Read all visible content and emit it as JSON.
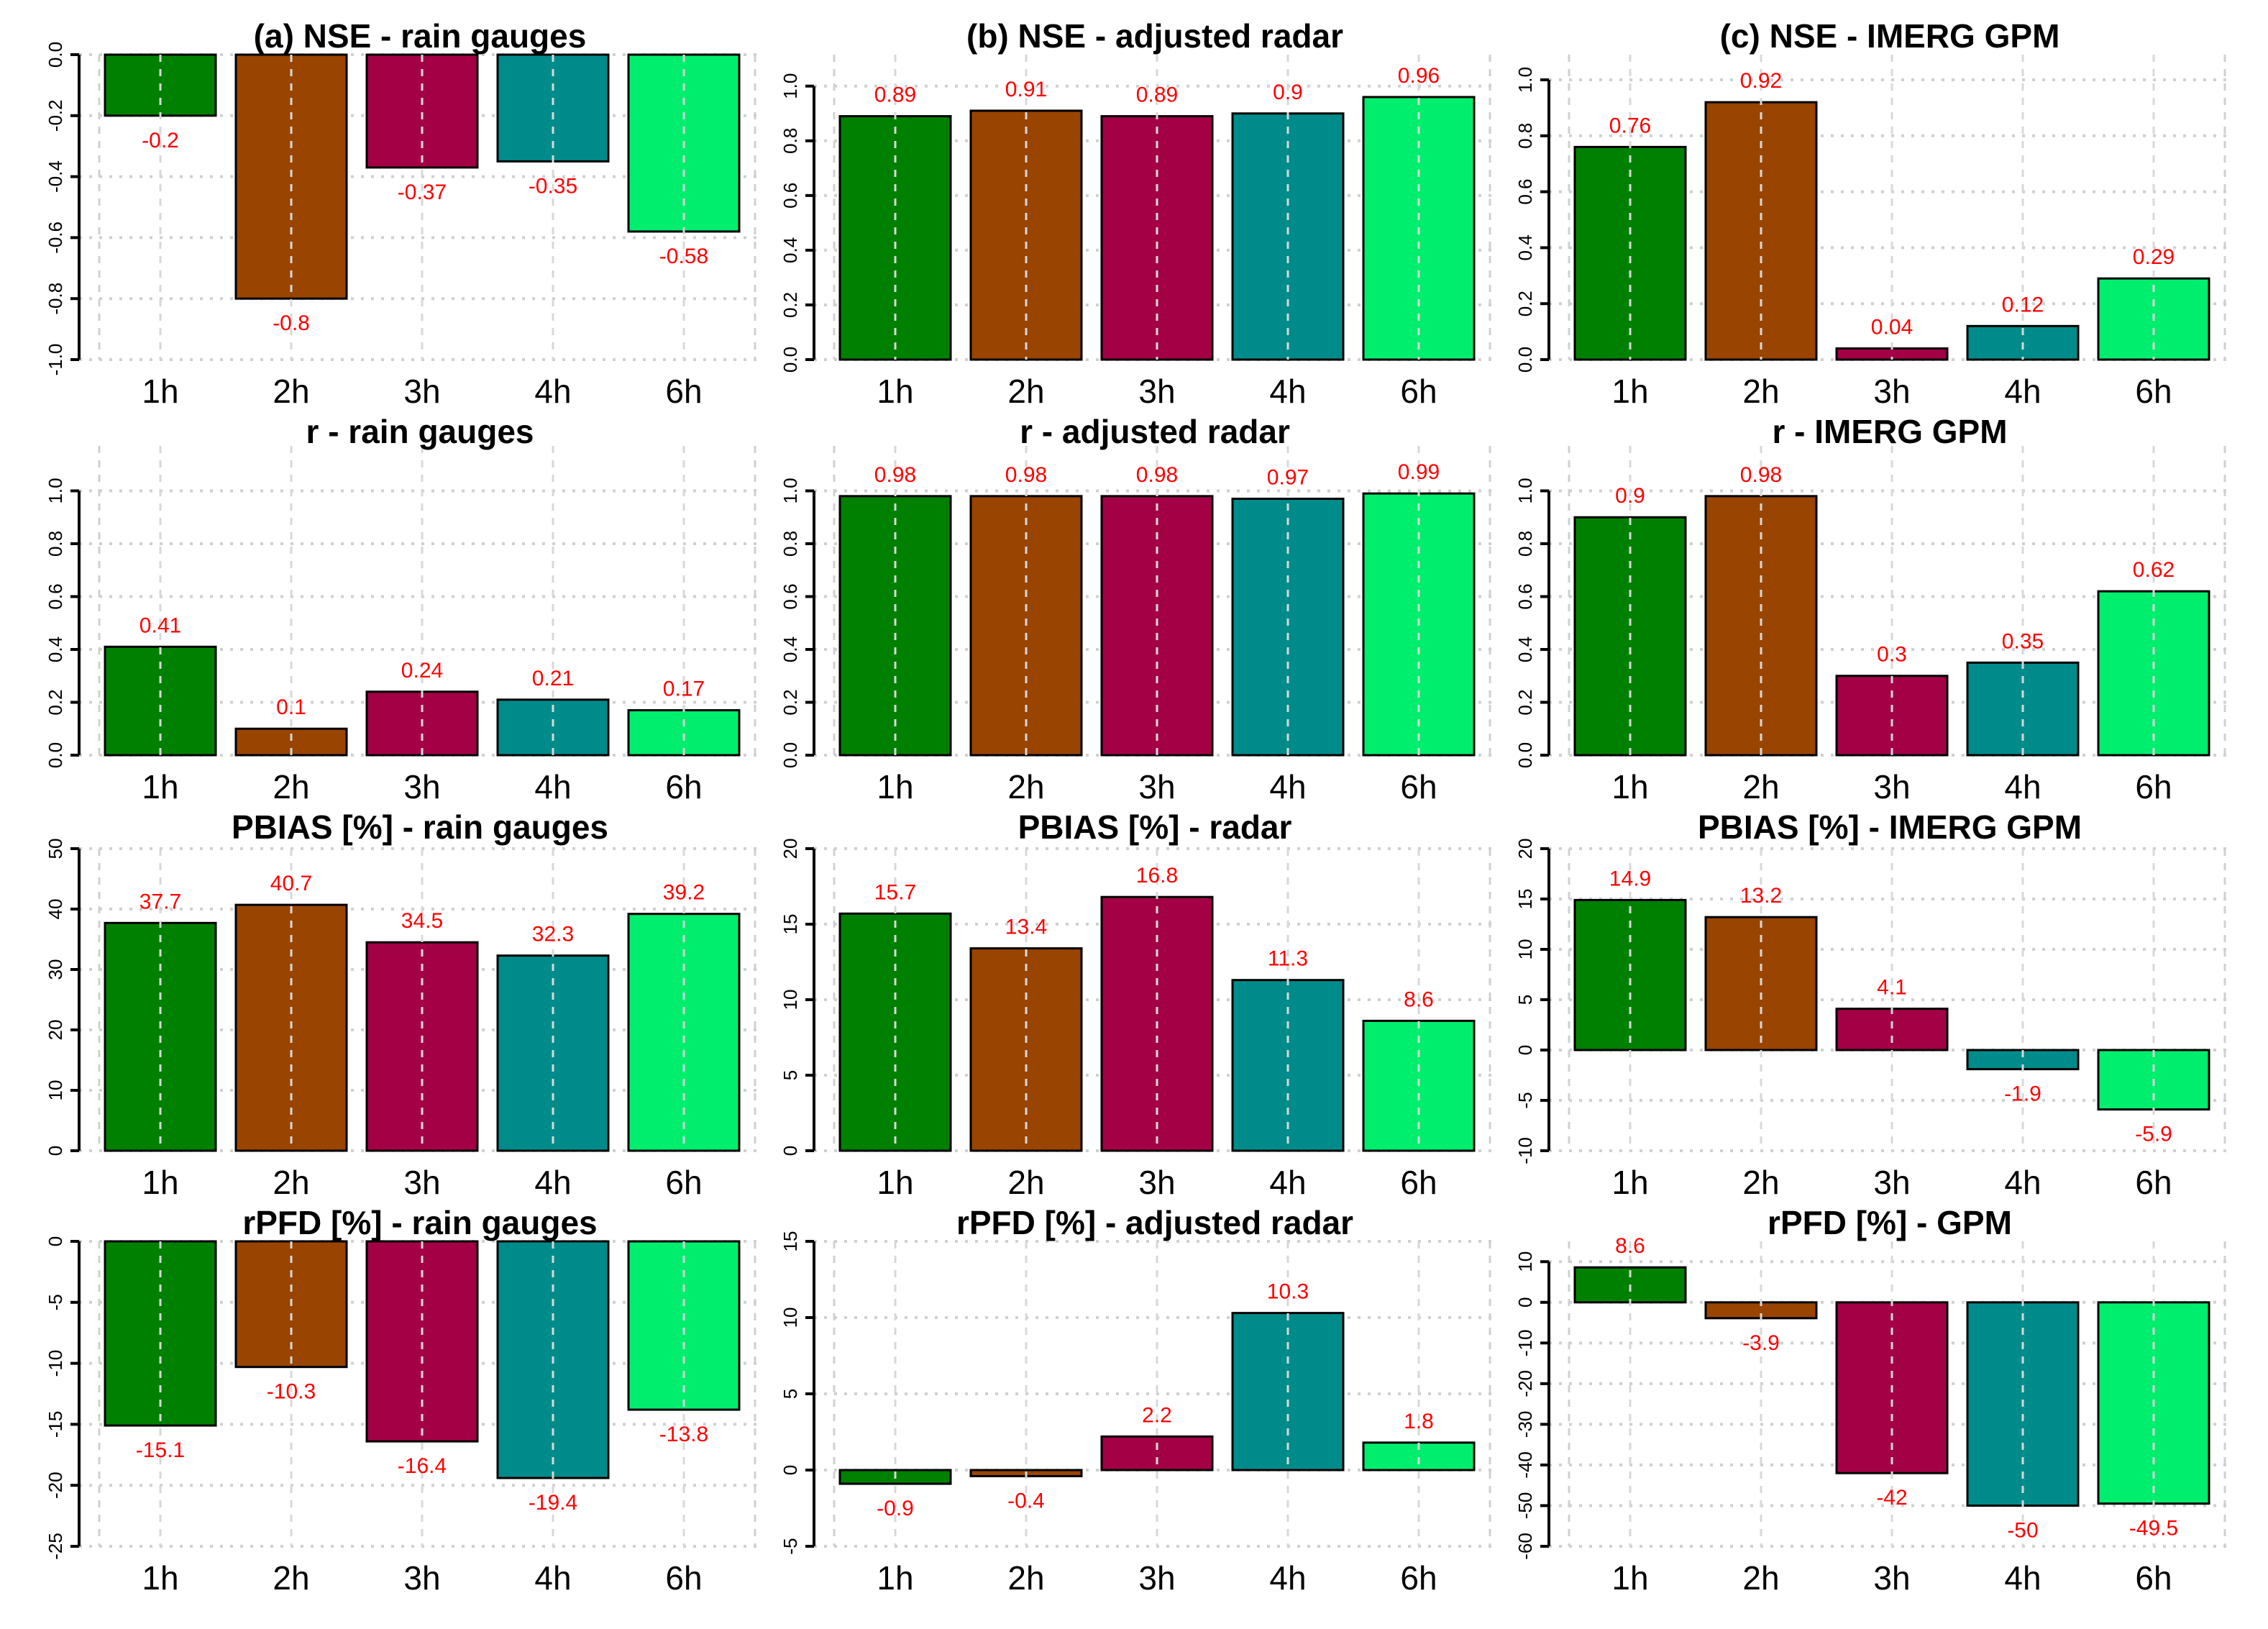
{
  "chart_data": {
    "type": "bar",
    "layout": "4 rows x 3 columns",
    "categories": [
      "1h",
      "2h",
      "3h",
      "4h",
      "6h"
    ],
    "colors": [
      "#008000",
      "#994400",
      "#A30046",
      "#008B8B",
      "#00EE6E"
    ],
    "label_color": "#FF0000",
    "grid": true,
    "panels": [
      {
        "title": "(a) NSE - rain gauges",
        "values": [
          -0.2,
          -0.8,
          -0.37,
          -0.35,
          -0.58
        ],
        "labels": [
          "-0.2",
          "-0.8",
          "-0.37",
          "-0.35",
          "-0.58"
        ],
        "ylim": [
          -1,
          0
        ],
        "ticks": [
          "-1.0",
          "-0.8",
          "-0.6",
          "-0.4",
          "-0.2",
          "0.0"
        ]
      },
      {
        "title": "(b) NSE - adjusted radar",
        "values": [
          0.89,
          0.91,
          0.89,
          0.9,
          0.96
        ],
        "labels": [
          "0.89",
          "0.91",
          "0.89",
          "0.9",
          "0.96"
        ],
        "ylim": [
          0,
          1.115
        ],
        "ticks": [
          "0.0",
          "0.2",
          "0.4",
          "0.6",
          "0.8",
          "1.0"
        ]
      },
      {
        "title": "(c) NSE - IMERG GPM",
        "values": [
          0.76,
          0.92,
          0.04,
          0.12,
          0.29
        ],
        "labels": [
          "0.76",
          "0.92",
          "0.04",
          "0.12",
          "0.29"
        ],
        "ylim": [
          0,
          1.09
        ],
        "ticks": [
          "0.0",
          "0.2",
          "0.4",
          "0.6",
          "0.8",
          "1.0"
        ]
      },
      {
        "title": "r - rain gauges",
        "values": [
          0.41,
          0.1,
          0.24,
          0.21,
          0.17
        ],
        "labels": [
          "0.41",
          "0.1",
          "0.24",
          "0.21",
          "0.17"
        ],
        "ylim": [
          0,
          1.17
        ],
        "ticks": [
          "0.0",
          "0.2",
          "0.4",
          "0.6",
          "0.8",
          "1.0"
        ]
      },
      {
        "title": "r - adjusted radar",
        "values": [
          0.98,
          0.98,
          0.98,
          0.97,
          0.99
        ],
        "labels": [
          "0.98",
          "0.98",
          "0.98",
          "0.97",
          "0.99"
        ],
        "ylim": [
          0,
          1.17
        ],
        "ticks": [
          "0.0",
          "0.2",
          "0.4",
          "0.6",
          "0.8",
          "1.0"
        ]
      },
      {
        "title": "r - IMERG GPM",
        "values": [
          0.9,
          0.98,
          0.3,
          0.35,
          0.62
        ],
        "labels": [
          "0.9",
          "0.98",
          "0.3",
          "0.35",
          "0.62"
        ],
        "ylim": [
          0,
          1.17
        ],
        "ticks": [
          "0.0",
          "0.2",
          "0.4",
          "0.6",
          "0.8",
          "1.0"
        ]
      },
      {
        "title": "PBIAS [%] - rain gauges",
        "values": [
          37.7,
          40.7,
          34.5,
          32.3,
          39.2
        ],
        "labels": [
          "37.7",
          "40.7",
          "34.5",
          "32.3",
          "39.2"
        ],
        "ylim": [
          0,
          50
        ],
        "ticks": [
          "0",
          "10",
          "20",
          "30",
          "40",
          "50"
        ]
      },
      {
        "title": "PBIAS [%] - radar",
        "values": [
          15.7,
          13.4,
          16.8,
          11.3,
          8.6
        ],
        "labels": [
          "15.7",
          "13.4",
          "16.8",
          "11.3",
          "8.6"
        ],
        "ylim": [
          0,
          20
        ],
        "ticks": [
          "0",
          "5",
          "10",
          "15",
          "20"
        ]
      },
      {
        "title": "PBIAS [%] - IMERG GPM",
        "values": [
          14.9,
          13.2,
          4.1,
          -1.9,
          -5.9
        ],
        "labels": [
          "14.9",
          "13.2",
          "4.1",
          "-1.9",
          "-5.9"
        ],
        "ylim": [
          -10,
          20
        ],
        "ticks": [
          "-10",
          "-5",
          "0",
          "5",
          "10",
          "15",
          "20"
        ]
      },
      {
        "title": "rPFD [%] - rain gauges",
        "values": [
          -15.1,
          -10.3,
          -16.4,
          -19.4,
          -13.8
        ],
        "labels": [
          "-15.1",
          "-10.3",
          "-16.4",
          "-19.4",
          "-13.8"
        ],
        "ylim": [
          -25,
          0
        ],
        "ticks": [
          "-25",
          "-20",
          "-15",
          "-10",
          "-5",
          "0"
        ]
      },
      {
        "title": "rPFD [%] - adjusted radar",
        "values": [
          -0.9,
          -0.4,
          2.2,
          10.3,
          1.8
        ],
        "labels": [
          "-0.9",
          "-0.4",
          "2.2",
          "10.3",
          "1.8"
        ],
        "ylim": [
          -5,
          15
        ],
        "ticks": [
          "-5",
          "0",
          "5",
          "10",
          "15"
        ]
      },
      {
        "title": "rPFD [%] - GPM",
        "values": [
          8.6,
          -3.9,
          -42,
          -50,
          -49.5
        ],
        "labels": [
          "8.6",
          "-3.9",
          "-42",
          "-50",
          "-49.5"
        ],
        "ylim": [
          -60,
          15
        ],
        "ticks": [
          "-60",
          "-50",
          "-40",
          "-30",
          "-20",
          "-10",
          "0",
          "10"
        ]
      }
    ]
  }
}
